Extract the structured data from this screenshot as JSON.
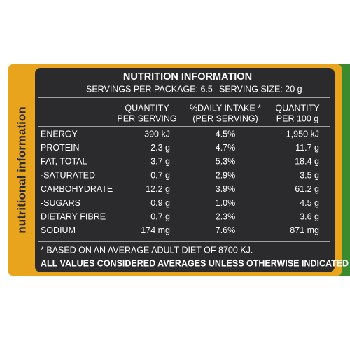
{
  "side_label": "nutritional information",
  "title": "NUTRITION INFORMATION",
  "servings_per_package": "SERVINGS PER PACKAGE: 6.5",
  "serving_size": "SERVING SIZE: 20 g",
  "headers": [
    [
      "QUANTITY",
      "PER SERVING"
    ],
    [
      "%DAILY INTAKE *",
      "(PER SERVING)"
    ],
    [
      "QUANTITY",
      "PER 100 g"
    ]
  ],
  "table": {
    "rows": [
      [
        "ENERGY",
        "390 kJ",
        "4.5%",
        "1,950 kJ"
      ],
      [
        "PROTEIN",
        "2.3 g",
        "4.7%",
        "11.7 g"
      ],
      [
        "FAT, TOTAL",
        "3.7 g",
        "5.3%",
        "18.4 g"
      ],
      [
        "-SATURATED",
        "0.7 g",
        "2.9%",
        "3.5 g"
      ],
      [
        "CARBOHYDRATE",
        "12.2 g",
        "3.9%",
        "61.2 g"
      ],
      [
        "-SUGARS",
        "0.9 g",
        "1.0%",
        "4.5 g"
      ],
      [
        "DIETARY FIBRE",
        "0.7 g",
        "2.3%",
        "3.6 g"
      ],
      [
        "SODIUM",
        "174 mg",
        "7.6%",
        "871 mg"
      ]
    ]
  },
  "footnotes": [
    "* BASED ON AN AVERAGE ADULT DIET OF 8700 KJ.",
    "ALL VALUES CONSIDERED AVERAGES UNLESS OTHERWISE INDICATED"
  ]
}
